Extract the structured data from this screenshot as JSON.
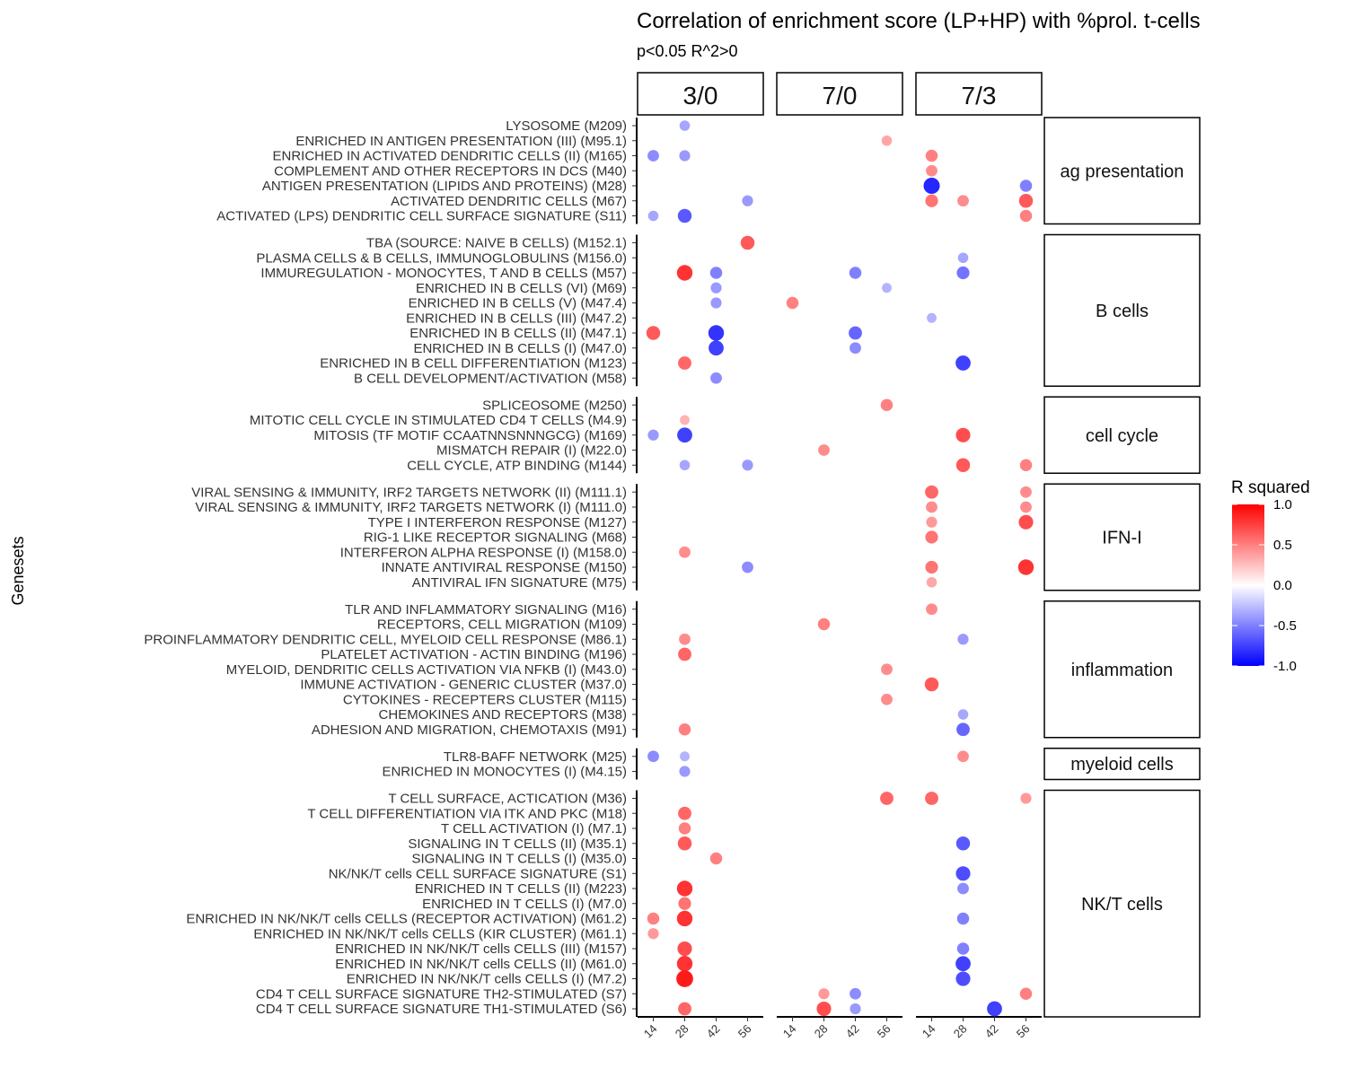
{
  "chart_data": {
    "type": "scatter",
    "title": "Correlation of enrichment score (LP+HP) with %prol. t-cells",
    "subtitle": "p<0.05 R^2>0",
    "ylabel": "Genesets",
    "facets": [
      "3/0",
      "7/0",
      "7/3"
    ],
    "x_ticks": [
      14,
      28,
      42,
      56
    ],
    "legend": {
      "title": "R squared",
      "ticks": [
        1.0,
        0.5,
        0.0,
        -0.5,
        -1.0
      ],
      "tick_labels": [
        "1.0",
        "0.5",
        "0.0",
        "-0.5",
        "-1.0"
      ],
      "range": [
        -1,
        1
      ],
      "colors": {
        "high": "#ff0000",
        "mid": "#ffffff",
        "low": "#0000ff"
      },
      "position": "right"
    },
    "groups": [
      {
        "name": "ag presentation",
        "genesets": [
          "LYSOSOME (M209)",
          "ENRICHED IN ANTIGEN PRESENTATION (III) (M95.1)",
          "ENRICHED IN ACTIVATED DENDRITIC CELLS (II) (M165)",
          "COMPLEMENT AND OTHER RECEPTORS IN DCS (M40)",
          "ANTIGEN PRESENTATION (LIPIDS AND PROTEINS) (M28)",
          "ACTIVATED DENDRITIC CELLS (M67)",
          "ACTIVATED (LPS) DENDRITIC CELL SURFACE SIGNATURE (S11)"
        ]
      },
      {
        "name": "B cells",
        "genesets": [
          "TBA (SOURCE: NAIVE B CELLS) (M152.1)",
          "PLASMA CELLS & B CELLS, IMMUNOGLOBULINS (M156.0)",
          "IMMUREGULATION - MONOCYTES, T AND B CELLS (M57)",
          "ENRICHED IN B CELLS (VI) (M69)",
          "ENRICHED IN B CELLS (V) (M47.4)",
          "ENRICHED IN B CELLS (III) (M47.2)",
          "ENRICHED IN B CELLS (II) (M47.1)",
          "ENRICHED IN B CELLS (I) (M47.0)",
          "ENRICHED IN B CELL DIFFERENTIATION (M123)",
          "B CELL DEVELOPMENT/ACTIVATION (M58)"
        ]
      },
      {
        "name": "cell cycle",
        "genesets": [
          "SPLICEOSOME (M250)",
          "MITOTIC CELL CYCLE IN STIMULATED CD4 T CELLS (M4.9)",
          "MITOSIS (TF MOTIF CCAATNNSNNNGCG) (M169)",
          "MISMATCH REPAIR (I) (M22.0)",
          "CELL CYCLE, ATP BINDING (M144)"
        ]
      },
      {
        "name": "IFN-I",
        "genesets": [
          "VIRAL SENSING & IMMUNITY,  IRF2 TARGETS NETWORK (II) (M111.1)",
          "VIRAL SENSING & IMMUNITY,  IRF2 TARGETS NETWORK (I) (M111.0)",
          "TYPE I INTERFERON RESPONSE (M127)",
          "RIG-1 LIKE RECEPTOR SIGNALING (M68)",
          "INTERFERON ALPHA RESPONSE (I) (M158.0)",
          "INNATE ANTIVIRAL RESPONSE (M150)",
          "ANTIVIRAL IFN SIGNATURE (M75)"
        ]
      },
      {
        "name": "inflammation",
        "genesets": [
          "TLR AND INFLAMMATORY SIGNALING (M16)",
          "RECEPTORS, CELL MIGRATION (M109)",
          "PROINFLAMMATORY DENDRITIC CELL, MYELOID CELL RESPONSE (M86.1)",
          "PLATELET ACTIVATION - ACTIN BINDING (M196)",
          "MYELOID, DENDRITIC CELLS ACTIVATION VIA NFKB (I) (M43.0)",
          "IMMUNE ACTIVATION - GENERIC CLUSTER (M37.0)",
          "CYTOKINES - RECEPTERS CLUSTER (M115)",
          "CHEMOKINES AND RECEPTORS (M38)",
          "ADHESION AND MIGRATION, CHEMOTAXIS (M91)"
        ]
      },
      {
        "name": "myeloid cells",
        "genesets": [
          "TLR8-BAFF NETWORK (M25)",
          "ENRICHED IN MONOCYTES (I) (M4.15)"
        ]
      },
      {
        "name": "NK/T cells",
        "genesets": [
          "T CELL SURFACE, ACTICATION (M36)",
          "T CELL DIFFERENTIATION VIA ITK AND PKC (M18)",
          "T CELL ACTIVATION (I) (M7.1)",
          "SIGNALING IN T CELLS (II) (M35.1)",
          "SIGNALING IN T CELLS (I) (M35.0)",
          "NK/NK/T cells CELL SURFACE SIGNATURE (S1)",
          "ENRICHED IN T CELLS (II) (M223)",
          "ENRICHED IN T CELLS (I) (M7.0)",
          "ENRICHED IN NK/NK/T cells CELLS (RECEPTOR ACTIVATION) (M61.2)",
          "ENRICHED IN NK/NK/T cells CELLS (KIR CLUSTER) (M61.1)",
          "ENRICHED IN NK/NK/T cells CELLS (III) (M157)",
          "ENRICHED IN NK/NK/T cells CELLS (II) (M61.0)",
          "ENRICHED IN NK/NK/T cells CELLS (I) (M7.2)",
          "CD4 T CELL SURFACE SIGNATURE TH2-STIMULATED (S7)",
          "CD4 T CELL SURFACE SIGNATURE TH1-STIMULATED (S6)"
        ]
      }
    ],
    "points": [
      {
        "g": "LYSOSOME (M209)",
        "f": "3/0",
        "x": 28,
        "r2": -0.35
      },
      {
        "g": "ENRICHED IN ANTIGEN PRESENTATION (III) (M95.1)",
        "f": "7/0",
        "x": 56,
        "r2": 0.35
      },
      {
        "g": "ENRICHED IN ACTIVATED DENDRITIC CELLS (II) (M165)",
        "f": "3/0",
        "x": 14,
        "r2": -0.45
      },
      {
        "g": "ENRICHED IN ACTIVATED DENDRITIC CELLS (II) (M165)",
        "f": "3/0",
        "x": 28,
        "r2": -0.4
      },
      {
        "g": "ENRICHED IN ACTIVATED DENDRITIC CELLS (II) (M165)",
        "f": "7/3",
        "x": 14,
        "r2": 0.5
      },
      {
        "g": "COMPLEMENT AND OTHER RECEPTORS IN DCS (M40)",
        "f": "7/3",
        "x": 14,
        "r2": 0.45
      },
      {
        "g": "ANTIGEN PRESENTATION (LIPIDS AND PROTEINS) (M28)",
        "f": "7/3",
        "x": 14,
        "r2": -0.85
      },
      {
        "g": "ANTIGEN PRESENTATION (LIPIDS AND PROTEINS) (M28)",
        "f": "7/3",
        "x": 56,
        "r2": -0.5
      },
      {
        "g": "ACTIVATED DENDRITIC CELLS (M67)",
        "f": "3/0",
        "x": 56,
        "r2": -0.4
      },
      {
        "g": "ACTIVATED DENDRITIC CELLS (M67)",
        "f": "7/3",
        "x": 14,
        "r2": 0.55
      },
      {
        "g": "ACTIVATED DENDRITIC CELLS (M67)",
        "f": "7/3",
        "x": 28,
        "r2": 0.45
      },
      {
        "g": "ACTIVATED DENDRITIC CELLS (M67)",
        "f": "7/3",
        "x": 56,
        "r2": 0.65
      },
      {
        "g": "ACTIVATED (LPS) DENDRITIC CELL SURFACE SIGNATURE (S11)",
        "f": "3/0",
        "x": 14,
        "r2": -0.35
      },
      {
        "g": "ACTIVATED (LPS) DENDRITIC CELL SURFACE SIGNATURE (S11)",
        "f": "3/0",
        "x": 28,
        "r2": -0.65
      },
      {
        "g": "ACTIVATED (LPS) DENDRITIC CELL SURFACE SIGNATURE (S11)",
        "f": "7/3",
        "x": 56,
        "r2": 0.5
      },
      {
        "g": "TBA (SOURCE: NAIVE B CELLS) (M152.1)",
        "f": "3/0",
        "x": 56,
        "r2": 0.65
      },
      {
        "g": "PLASMA CELLS & B CELLS, IMMUNOGLOBULINS (M156.0)",
        "f": "7/3",
        "x": 28,
        "r2": -0.35
      },
      {
        "g": "IMMUREGULATION - MONOCYTES, T AND B CELLS (M57)",
        "f": "3/0",
        "x": 28,
        "r2": 0.8
      },
      {
        "g": "IMMUREGULATION - MONOCYTES, T AND B CELLS (M57)",
        "f": "3/0",
        "x": 42,
        "r2": -0.5
      },
      {
        "g": "IMMUREGULATION - MONOCYTES, T AND B CELLS (M57)",
        "f": "7/0",
        "x": 42,
        "r2": -0.5
      },
      {
        "g": "IMMUREGULATION - MONOCYTES, T AND B CELLS (M57)",
        "f": "7/3",
        "x": 28,
        "r2": -0.55
      },
      {
        "g": "ENRICHED IN B CELLS (VI) (M69)",
        "f": "3/0",
        "x": 42,
        "r2": -0.4
      },
      {
        "g": "ENRICHED IN B CELLS (VI) (M69)",
        "f": "7/0",
        "x": 56,
        "r2": -0.3
      },
      {
        "g": "ENRICHED IN B CELLS (V) (M47.4)",
        "f": "3/0",
        "x": 42,
        "r2": -0.4
      },
      {
        "g": "ENRICHED IN B CELLS (V) (M47.4)",
        "f": "7/0",
        "x": 14,
        "r2": 0.5
      },
      {
        "g": "ENRICHED IN B CELLS (III) (M47.2)",
        "f": "7/3",
        "x": 14,
        "r2": -0.3
      },
      {
        "g": "ENRICHED IN B CELLS (II) (M47.1)",
        "f": "3/0",
        "x": 14,
        "r2": 0.65
      },
      {
        "g": "ENRICHED IN B CELLS (II) (M47.1)",
        "f": "3/0",
        "x": 42,
        "r2": -0.8
      },
      {
        "g": "ENRICHED IN B CELLS (II) (M47.1)",
        "f": "7/0",
        "x": 42,
        "r2": -0.6
      },
      {
        "g": "ENRICHED IN B CELLS (I) (M47.0)",
        "f": "3/0",
        "x": 42,
        "r2": -0.75
      },
      {
        "g": "ENRICHED IN B CELLS (I) (M47.0)",
        "f": "7/0",
        "x": 42,
        "r2": -0.45
      },
      {
        "g": "ENRICHED IN B CELL DIFFERENTIATION (M123)",
        "f": "3/0",
        "x": 28,
        "r2": 0.6
      },
      {
        "g": "ENRICHED IN B CELL DIFFERENTIATION (M123)",
        "f": "7/3",
        "x": 28,
        "r2": -0.75
      },
      {
        "g": "B CELL DEVELOPMENT/ACTIVATION (M58)",
        "f": "3/0",
        "x": 42,
        "r2": -0.45
      },
      {
        "g": "SPLICEOSOME (M250)",
        "f": "7/0",
        "x": 56,
        "r2": 0.5
      },
      {
        "g": "MITOTIC CELL CYCLE IN STIMULATED CD4 T CELLS (M4.9)",
        "f": "3/0",
        "x": 28,
        "r2": 0.3
      },
      {
        "g": "MITOSIS (TF MOTIF CCAATNNSNNNGCG) (M169)",
        "f": "3/0",
        "x": 14,
        "r2": -0.4
      },
      {
        "g": "MITOSIS (TF MOTIF CCAATNNSNNNGCG) (M169)",
        "f": "3/0",
        "x": 28,
        "r2": -0.75
      },
      {
        "g": "MITOSIS (TF MOTIF CCAATNNSNNNGCG) (M169)",
        "f": "7/3",
        "x": 28,
        "r2": 0.7
      },
      {
        "g": "MISMATCH REPAIR (I) (M22.0)",
        "f": "7/0",
        "x": 28,
        "r2": 0.45
      },
      {
        "g": "CELL CYCLE, ATP BINDING (M144)",
        "f": "3/0",
        "x": 28,
        "r2": -0.35
      },
      {
        "g": "CELL CYCLE, ATP BINDING (M144)",
        "f": "3/0",
        "x": 56,
        "r2": -0.4
      },
      {
        "g": "CELL CYCLE, ATP BINDING (M144)",
        "f": "7/3",
        "x": 28,
        "r2": 0.65
      },
      {
        "g": "CELL CYCLE, ATP BINDING (M144)",
        "f": "7/3",
        "x": 56,
        "r2": 0.5
      },
      {
        "g": "VIRAL SENSING & IMMUNITY,  IRF2 TARGETS NETWORK (II) (M111.1)",
        "f": "7/3",
        "x": 14,
        "r2": 0.6
      },
      {
        "g": "VIRAL SENSING & IMMUNITY,  IRF2 TARGETS NETWORK (II) (M111.1)",
        "f": "7/3",
        "x": 56,
        "r2": 0.45
      },
      {
        "g": "VIRAL SENSING & IMMUNITY,  IRF2 TARGETS NETWORK (I) (M111.0)",
        "f": "7/3",
        "x": 14,
        "r2": 0.45
      },
      {
        "g": "VIRAL SENSING & IMMUNITY,  IRF2 TARGETS NETWORK (I) (M111.0)",
        "f": "7/3",
        "x": 56,
        "r2": 0.45
      },
      {
        "g": "TYPE I INTERFERON RESPONSE (M127)",
        "f": "7/3",
        "x": 14,
        "r2": 0.4
      },
      {
        "g": "TYPE I INTERFERON RESPONSE (M127)",
        "f": "7/3",
        "x": 56,
        "r2": 0.7
      },
      {
        "g": "RIG-1 LIKE RECEPTOR SIGNALING (M68)",
        "f": "7/3",
        "x": 14,
        "r2": 0.55
      },
      {
        "g": "INTERFERON ALPHA RESPONSE (I) (M158.0)",
        "f": "3/0",
        "x": 28,
        "r2": 0.45
      },
      {
        "g": "INNATE ANTIVIRAL RESPONSE (M150)",
        "f": "3/0",
        "x": 56,
        "r2": -0.45
      },
      {
        "g": "INNATE ANTIVIRAL RESPONSE (M150)",
        "f": "7/3",
        "x": 14,
        "r2": 0.55
      },
      {
        "g": "INNATE ANTIVIRAL RESPONSE (M150)",
        "f": "7/3",
        "x": 56,
        "r2": 0.8
      },
      {
        "g": "ANTIVIRAL IFN SIGNATURE (M75)",
        "f": "7/3",
        "x": 14,
        "r2": 0.35
      },
      {
        "g": "TLR AND INFLAMMATORY SIGNALING (M16)",
        "f": "7/3",
        "x": 14,
        "r2": 0.45
      },
      {
        "g": "RECEPTORS, CELL MIGRATION (M109)",
        "f": "7/0",
        "x": 28,
        "r2": 0.5
      },
      {
        "g": "PROINFLAMMATORY DENDRITIC CELL, MYELOID CELL RESPONSE (M86.1)",
        "f": "3/0",
        "x": 28,
        "r2": 0.45
      },
      {
        "g": "PROINFLAMMATORY DENDRITIC CELL, MYELOID CELL RESPONSE (M86.1)",
        "f": "7/3",
        "x": 28,
        "r2": -0.4
      },
      {
        "g": "PLATELET ACTIVATION - ACTIN BINDING (M196)",
        "f": "3/0",
        "x": 28,
        "r2": 0.6
      },
      {
        "g": "MYELOID, DENDRITIC CELLS ACTIVATION VIA NFKB (I) (M43.0)",
        "f": "7/0",
        "x": 56,
        "r2": 0.45
      },
      {
        "g": "IMMUNE ACTIVATION - GENERIC CLUSTER (M37.0)",
        "f": "7/3",
        "x": 14,
        "r2": 0.65
      },
      {
        "g": "CYTOKINES - RECEPTERS CLUSTER (M115)",
        "f": "7/0",
        "x": 56,
        "r2": 0.45
      },
      {
        "g": "CHEMOKINES AND RECEPTORS (M38)",
        "f": "7/3",
        "x": 28,
        "r2": -0.35
      },
      {
        "g": "ADHESION AND MIGRATION, CHEMOTAXIS (M91)",
        "f": "3/0",
        "x": 28,
        "r2": 0.5
      },
      {
        "g": "ADHESION AND MIGRATION, CHEMOTAXIS (M91)",
        "f": "7/3",
        "x": 28,
        "r2": -0.6
      },
      {
        "g": "TLR8-BAFF NETWORK (M25)",
        "f": "3/0",
        "x": 14,
        "r2": -0.45
      },
      {
        "g": "TLR8-BAFF NETWORK (M25)",
        "f": "3/0",
        "x": 28,
        "r2": -0.3
      },
      {
        "g": "TLR8-BAFF NETWORK (M25)",
        "f": "7/3",
        "x": 28,
        "r2": 0.45
      },
      {
        "g": "ENRICHED IN MONOCYTES (I) (M4.15)",
        "f": "3/0",
        "x": 28,
        "r2": -0.4
      },
      {
        "g": "T CELL SURFACE, ACTICATION (M36)",
        "f": "7/0",
        "x": 56,
        "r2": 0.6
      },
      {
        "g": "T CELL SURFACE, ACTICATION (M36)",
        "f": "7/3",
        "x": 14,
        "r2": 0.6
      },
      {
        "g": "T CELL SURFACE, ACTICATION (M36)",
        "f": "7/3",
        "x": 56,
        "r2": 0.4
      },
      {
        "g": "T CELL DIFFERENTIATION VIA ITK AND PKC (M18)",
        "f": "3/0",
        "x": 28,
        "r2": 0.6
      },
      {
        "g": "T CELL ACTIVATION (I) (M7.1)",
        "f": "3/0",
        "x": 28,
        "r2": 0.5
      },
      {
        "g": "SIGNALING IN T CELLS (II) (M35.1)",
        "f": "3/0",
        "x": 28,
        "r2": 0.65
      },
      {
        "g": "SIGNALING IN T CELLS (II) (M35.1)",
        "f": "7/3",
        "x": 28,
        "r2": -0.65
      },
      {
        "g": "SIGNALING IN T CELLS (I) (M35.0)",
        "f": "3/0",
        "x": 42,
        "r2": 0.5
      },
      {
        "g": "NK/NK/T cells CELL SURFACE SIGNATURE (S1)",
        "f": "7/3",
        "x": 28,
        "r2": -0.7
      },
      {
        "g": "ENRICHED IN T CELLS (II) (M223)",
        "f": "3/0",
        "x": 28,
        "r2": 0.8
      },
      {
        "g": "ENRICHED IN T CELLS (II) (M223)",
        "f": "7/3",
        "x": 28,
        "r2": -0.45
      },
      {
        "g": "ENRICHED IN T CELLS (I) (M7.0)",
        "f": "3/0",
        "x": 28,
        "r2": 0.55
      },
      {
        "g": "ENRICHED IN NK/NK/T cells CELLS (RECEPTOR ACTIVATION) (M61.2)",
        "f": "3/0",
        "x": 14,
        "r2": 0.5
      },
      {
        "g": "ENRICHED IN NK/NK/T cells CELLS (RECEPTOR ACTIVATION) (M61.2)",
        "f": "3/0",
        "x": 28,
        "r2": 0.8
      },
      {
        "g": "ENRICHED IN NK/NK/T cells CELLS (RECEPTOR ACTIVATION) (M61.2)",
        "f": "7/3",
        "x": 28,
        "r2": -0.5
      },
      {
        "g": "ENRICHED IN NK/NK/T cells CELLS (KIR CLUSTER) (M61.1)",
        "f": "3/0",
        "x": 14,
        "r2": 0.4
      },
      {
        "g": "ENRICHED IN NK/NK/T cells CELLS (III) (M157)",
        "f": "3/0",
        "x": 28,
        "r2": 0.7
      },
      {
        "g": "ENRICHED IN NK/NK/T cells CELLS (III) (M157)",
        "f": "7/3",
        "x": 28,
        "r2": -0.5
      },
      {
        "g": "ENRICHED IN NK/NK/T cells CELLS (II) (M61.0)",
        "f": "3/0",
        "x": 28,
        "r2": 0.8
      },
      {
        "g": "ENRICHED IN NK/NK/T cells CELLS (II) (M61.0)",
        "f": "7/3",
        "x": 28,
        "r2": -0.75
      },
      {
        "g": "ENRICHED IN NK/NK/T cells CELLS (I) (M7.2)",
        "f": "3/0",
        "x": 28,
        "r2": 0.9
      },
      {
        "g": "ENRICHED IN NK/NK/T cells CELLS (I) (M7.2)",
        "f": "7/3",
        "x": 28,
        "r2": -0.7
      },
      {
        "g": "CD4 T CELL SURFACE SIGNATURE TH2-STIMULATED (S7)",
        "f": "7/0",
        "x": 28,
        "r2": 0.4
      },
      {
        "g": "CD4 T CELL SURFACE SIGNATURE TH2-STIMULATED (S7)",
        "f": "7/0",
        "x": 42,
        "r2": -0.45
      },
      {
        "g": "CD4 T CELL SURFACE SIGNATURE TH2-STIMULATED (S7)",
        "f": "7/3",
        "x": 56,
        "r2": 0.5
      },
      {
        "g": "CD4 T CELL SURFACE SIGNATURE TH1-STIMULATED (S6)",
        "f": "3/0",
        "x": 28,
        "r2": 0.6
      },
      {
        "g": "CD4 T CELL SURFACE SIGNATURE TH1-STIMULATED (S6)",
        "f": "7/0",
        "x": 28,
        "r2": 0.7
      },
      {
        "g": "CD4 T CELL SURFACE SIGNATURE TH1-STIMULATED (S6)",
        "f": "7/0",
        "x": 42,
        "r2": -0.4
      },
      {
        "g": "CD4 T CELL SURFACE SIGNATURE TH1-STIMULATED (S6)",
        "f": "7/3",
        "x": 42,
        "r2": -0.75
      }
    ]
  }
}
